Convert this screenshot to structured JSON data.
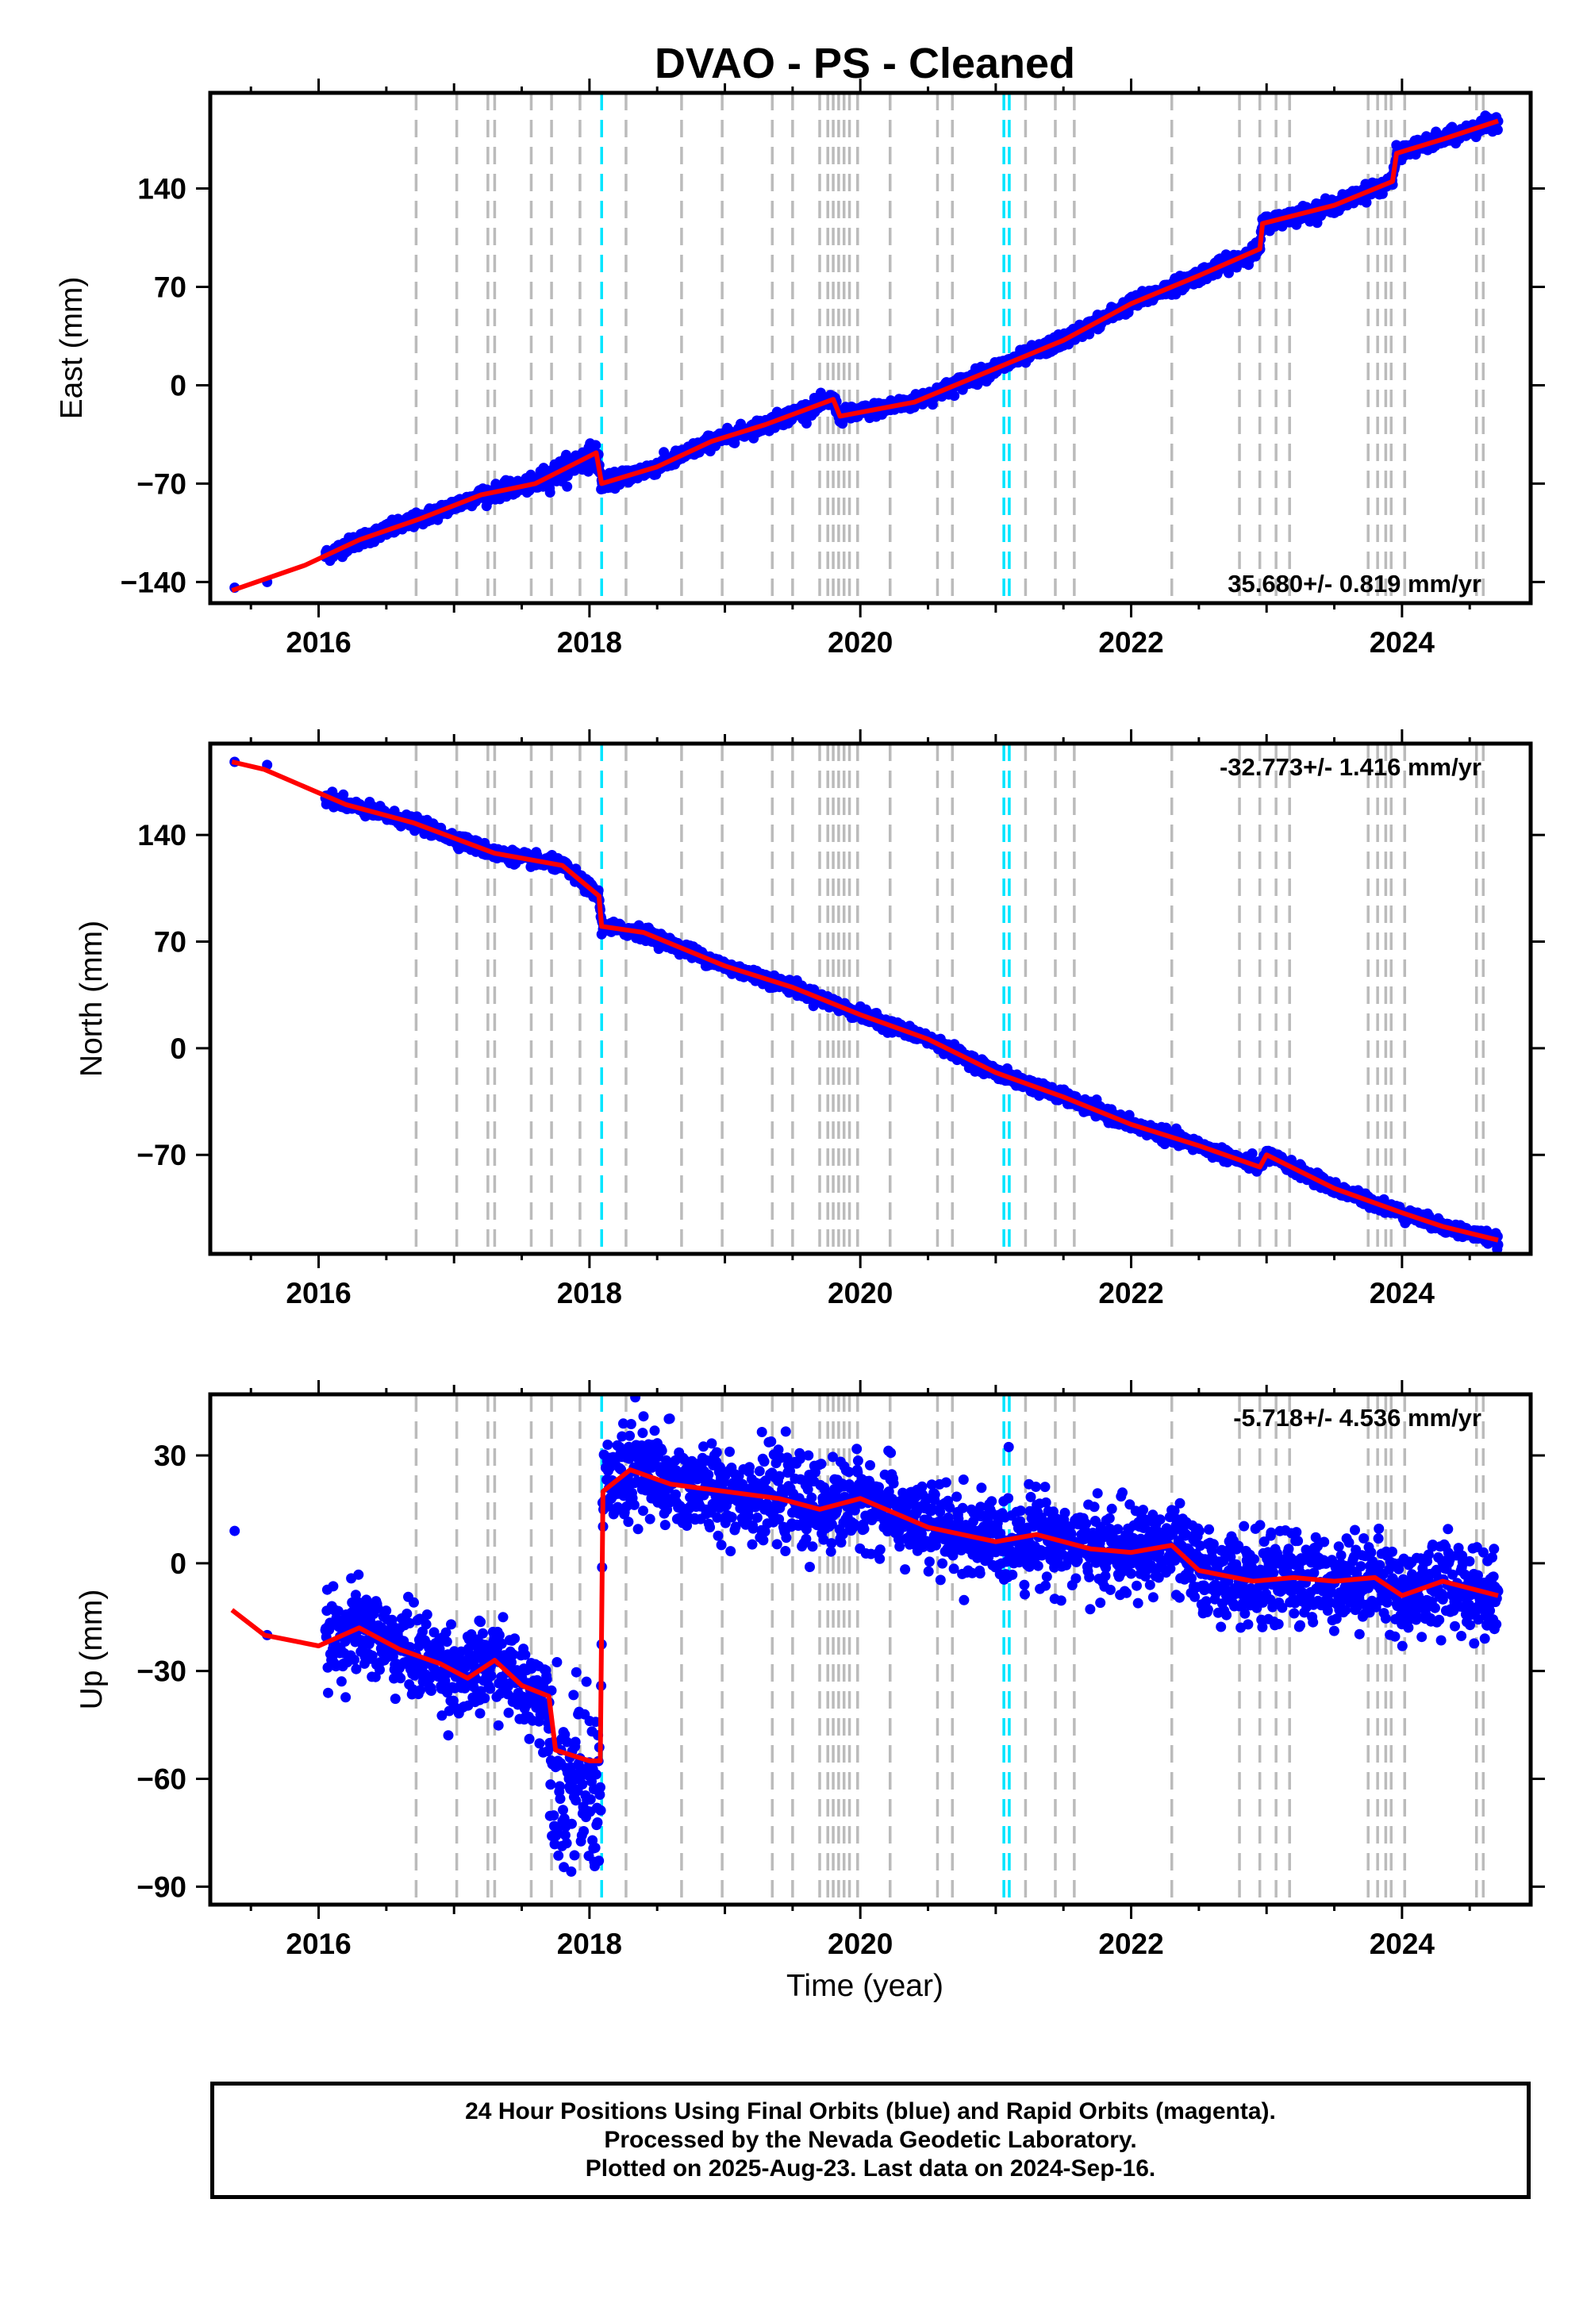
{
  "title": "DVAO  - PS - Cleaned",
  "colors": {
    "data_points": "#0000ff",
    "model_line": "#ff0000",
    "equipment_change": "#bbbbbb",
    "earthquake": "#00e5ff",
    "frame": "#000000"
  },
  "x_axis": {
    "label": "Time (year)",
    "range": [
      2015.2,
      2024.95
    ],
    "ticks": [
      2016,
      2018,
      2020,
      2022,
      2024
    ],
    "tick_labels": [
      "2016",
      "2018",
      "2020",
      "2022",
      "2024"
    ]
  },
  "event_lines": {
    "equipment": [
      2016.72,
      2017.02,
      2017.25,
      2017.3,
      2017.57,
      2017.72,
      2017.93,
      2018.27,
      2018.68,
      2018.98,
      2019.35,
      2019.5,
      2019.7,
      2019.76,
      2019.8,
      2019.84,
      2019.88,
      2019.92,
      2019.98,
      2020.22,
      2020.57,
      2020.68,
      2021.22,
      2021.44,
      2021.58,
      2022.3,
      2022.8,
      2022.95,
      2023.07,
      2023.17,
      2023.75,
      2023.82,
      2023.88,
      2023.92,
      2024.02,
      2024.55,
      2024.6
    ],
    "earthquake": [
      2018.09,
      2021.06,
      2021.1
    ]
  },
  "chart_data": [
    {
      "type": "scatter",
      "component": "east",
      "ylabel": "East (mm)",
      "ylim": [
        -155,
        208
      ],
      "yticks": [
        -140,
        -70,
        0,
        70,
        140
      ],
      "ytick_labels": [
        "−140",
        "−70",
        "0",
        "70",
        "140"
      ],
      "rate_label": "35.680+/- 0.819 mm/yr",
      "rate_position": "bottom-right",
      "model": {
        "name": "",
        "x": [
          2015.36,
          2015.9,
          2016.3,
          2016.75,
          2017.2,
          2017.6,
          2018.05,
          2018.09,
          2018.5,
          2018.9,
          2019.3,
          2019.8,
          2019.85,
          2020.4,
          2021.0,
          2021.5,
          2022.0,
          2022.5,
          2022.95,
          2022.97,
          2023.5,
          2023.93,
          2023.96,
          2024.3,
          2024.71
        ],
        "y": [
          -146,
          -128,
          -110,
          -95,
          -78,
          -70,
          -48,
          -70,
          -58,
          -40,
          -28,
          -10,
          -22,
          -12,
          12,
          32,
          58,
          78,
          97,
          115,
          128,
          145,
          165,
          175,
          188
        ]
      },
      "observations": {
        "name": "",
        "gaps": [
          [
            2015.6,
            2016.05
          ]
        ],
        "noise_mm": 2.5,
        "outlier_x": [
          2015.38,
          2015.62
        ],
        "outlier_y": [
          -144,
          -140
        ]
      }
    },
    {
      "type": "scatter",
      "component": "north",
      "ylabel": "North (mm)",
      "ylim": [
        -135,
        200
      ],
      "yticks": [
        -70,
        0,
        70,
        140
      ],
      "ytick_labels": [
        "−70",
        "0",
        "70",
        "140"
      ],
      "rate_label": "-32.773+/- 1.416 mm/yr",
      "rate_position": "top-right",
      "model": {
        "name": "",
        "x": [
          2015.36,
          2015.6,
          2016.2,
          2016.7,
          2017.3,
          2017.8,
          2018.07,
          2018.09,
          2018.4,
          2019.0,
          2019.5,
          2020.0,
          2020.5,
          2021.0,
          2021.5,
          2022.0,
          2022.5,
          2022.95,
          2023.0,
          2023.5,
          2024.0,
          2024.3,
          2024.71
        ],
        "y": [
          188,
          183,
          160,
          148,
          128,
          120,
          100,
          80,
          76,
          54,
          40,
          22,
          6,
          -16,
          -32,
          -50,
          -64,
          -78,
          -70,
          -92,
          -108,
          -117,
          -126
        ]
      },
      "observations": {
        "name": "",
        "gaps": [
          [
            2015.6,
            2016.05
          ]
        ],
        "noise_mm": 2.0,
        "outlier_x": [
          2015.38,
          2015.62
        ],
        "outlier_y": [
          188,
          186
        ]
      }
    },
    {
      "type": "scatter",
      "component": "up",
      "ylabel": "Up (mm)",
      "ylim": [
        -95,
        47
      ],
      "yticks": [
        -90,
        -60,
        -30,
        0,
        30
      ],
      "ytick_labels": [
        "−90",
        "−60",
        "−30",
        "0",
        "30"
      ],
      "rate_label": "-5.718+/- 4.536 mm/yr",
      "rate_position": "top-right",
      "model": {
        "name": "",
        "x": [
          2015.36,
          2015.6,
          2016.0,
          2016.3,
          2016.6,
          2016.9,
          2017.1,
          2017.3,
          2017.5,
          2017.7,
          2017.75,
          2018.0,
          2018.08,
          2018.1,
          2018.3,
          2018.6,
          2019.0,
          2019.4,
          2019.7,
          2020.0,
          2020.5,
          2021.0,
          2021.3,
          2021.7,
          2022.0,
          2022.3,
          2022.5,
          2022.9,
          2023.2,
          2023.5,
          2023.8,
          2024.0,
          2024.3,
          2024.71
        ],
        "y": [
          -13,
          -20,
          -23,
          -18,
          -24,
          -28,
          -32,
          -27,
          -34,
          -37,
          -52,
          -55,
          -55,
          20,
          26,
          22,
          20,
          18,
          15,
          18,
          10,
          6,
          8,
          4,
          3,
          5,
          -2,
          -5,
          -4,
          -5,
          -4,
          -9,
          -5,
          -9
        ]
      },
      "observations": {
        "name": "",
        "gaps": [
          [
            2015.6,
            2016.05
          ]
        ],
        "noise_mm": 6.0,
        "outlier_x": [
          2015.38,
          2015.62
        ],
        "outlier_y": [
          9,
          -20
        ]
      }
    }
  ],
  "footer": {
    "line1": "24 Hour Positions Using Final Orbits (blue) and Rapid Orbits (magenta).",
    "line2": "Processed by the Nevada Geodetic Laboratory.",
    "line3": "Plotted on 2025-Aug-23. Last data on 2024-Sep-16."
  }
}
